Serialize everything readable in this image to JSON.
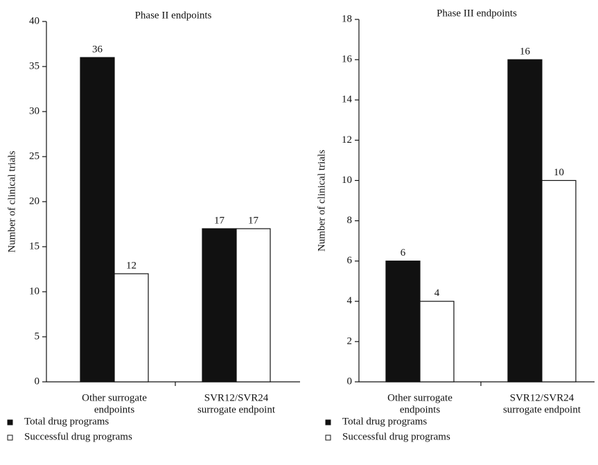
{
  "chart_data": [
    {
      "type": "bar",
      "title": "Phase II endpoints",
      "y_label": "Number of clinical trials",
      "categories": [
        [
          "Other surrogate",
          "endpoints"
        ],
        [
          "SVR12/SVR24",
          "surrogate endpoint"
        ]
      ],
      "series": [
        {
          "name": "Total drug programs",
          "color": "#111111",
          "values": [
            36,
            17
          ]
        },
        {
          "name": "Successful drug programs",
          "color": "#ffffff",
          "values": [
            12,
            17
          ]
        }
      ],
      "ylim": [
        0,
        40
      ],
      "yticks": [
        0,
        5,
        10,
        15,
        20,
        25,
        30,
        35,
        40
      ]
    },
    {
      "type": "bar",
      "title": "Phase III endpoints",
      "y_label": "Number of clinical trials",
      "categories": [
        [
          "Other surrogate",
          "endpoints"
        ],
        [
          "SVR12/SVR24",
          "surrogate endpoint"
        ]
      ],
      "series": [
        {
          "name": "Total drug programs",
          "color": "#111111",
          "values": [
            6,
            16
          ]
        },
        {
          "name": "Successful drug programs",
          "color": "#ffffff",
          "values": [
            4,
            10
          ]
        }
      ],
      "ylim": [
        0,
        18
      ],
      "yticks": [
        0,
        2,
        4,
        6,
        8,
        10,
        12,
        14,
        16,
        18
      ]
    }
  ]
}
